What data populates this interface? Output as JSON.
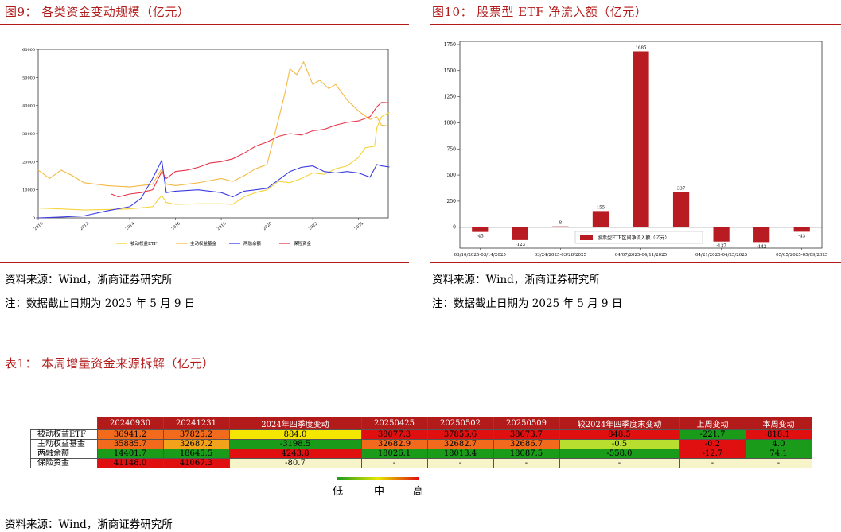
{
  "fig9": {
    "title": "图9： 各类资金变动规模（亿元）",
    "source": "资料来源：Wind，浙商证券研究所",
    "note": "注：数据截止日期为 2025 年 5 月 9 日"
  },
  "fig10": {
    "title": "图10： 股票型 ETF 净流入额（亿元）",
    "source": "资料来源：Wind，浙商证券研究所",
    "note": "注：数据截止日期为 2025 年 5 月 9 日"
  },
  "table1": {
    "title": "表1： 本周增量资金来源拆解（亿元）",
    "source": "资料来源：Wind，浙商证券研究所",
    "headers": [
      "",
      "20240930",
      "20241231",
      "2024年四季度变动",
      "20250425",
      "20250502",
      "20250509",
      "较2024年四季度末变动",
      "上周变动",
      "本周变动"
    ],
    "rows": [
      {
        "label": "被动权益ETF",
        "cells": [
          "36941.2",
          "37825.2",
          "884.0",
          "38077.3",
          "37855.6",
          "38673.7",
          "848.5",
          "-221.7",
          "818.1"
        ],
        "colors": [
          "#f26a1b",
          "#f26a1b",
          "#f5e600",
          "#e01010",
          "#e01010",
          "#e01010",
          "#e01010",
          "#1a9b1a",
          "#e01010"
        ]
      },
      {
        "label": "主动权益基金",
        "cells": [
          "35885.7",
          "32687.2",
          "-3198.5",
          "32682.9",
          "32682.7",
          "32686.7",
          "-0.5",
          "-0.2",
          "4.0"
        ],
        "colors": [
          "#f26a1b",
          "#f2a21b",
          "#1a9b1a",
          "#f26a1b",
          "#f26a1b",
          "#f26a1b",
          "#b8de30",
          "#e01010",
          "#1a9b1a"
        ]
      },
      {
        "label": "两融余额",
        "cells": [
          "14401.7",
          "18645.5",
          "4243.8",
          "18026.1",
          "18013.4",
          "18087.5",
          "-558.0",
          "-12.7",
          "74.1"
        ],
        "colors": [
          "#1a9b1a",
          "#1a9b1a",
          "#e01010",
          "#1a9b1a",
          "#1a9b1a",
          "#1a9b1a",
          "#1a9b1a",
          "#e01010",
          "#1a9b1a"
        ]
      },
      {
        "label": "保险资金",
        "cells": [
          "41148.0",
          "41067.3",
          "-80.7",
          "-",
          "-",
          "-",
          "-",
          "-",
          "-"
        ],
        "colors": [
          "#e01010",
          "#e01010",
          "#f7f4c9",
          "#f7f4c9",
          "#f7f4c9",
          "#f7f4c9",
          "#f7f4c9",
          "#f7f4c9",
          "#f7f4c9"
        ]
      }
    ],
    "legend": {
      "low": "低",
      "mid": "中",
      "high": "高"
    }
  },
  "chart_data": [
    {
      "type": "line",
      "x_ticks": [
        "2010",
        "2012",
        "2014",
        "2016",
        "2018",
        "2020",
        "2022",
        "2024"
      ],
      "y_ticks": [
        "0",
        "10000",
        "20000",
        "30000",
        "40000",
        "50000",
        "60000"
      ],
      "ylim": [
        0,
        60000
      ],
      "xlim": [
        2010,
        2025.3
      ],
      "legend_position": "bottom",
      "series": [
        {
          "name": "被动权益ETF",
          "color": "#f5d33b",
          "x": [
            2010,
            2011,
            2012,
            2013,
            2014,
            2015,
            2015.4,
            2015.6,
            2016,
            2017,
            2018,
            2018.5,
            2019,
            2019.5,
            2020,
            2020.5,
            2021,
            2021.5,
            2022,
            2022.5,
            2023,
            2023.5,
            2024,
            2024.3,
            2024.7,
            2024.8,
            2025,
            2025.35
          ],
          "y": [
            3500,
            3200,
            2800,
            3000,
            3200,
            4000,
            8000,
            5500,
            4800,
            5000,
            5000,
            4800,
            7500,
            9000,
            10000,
            13000,
            12500,
            14000,
            16000,
            15500,
            17500,
            18500,
            21500,
            25000,
            25500,
            32000,
            36000,
            37500
          ]
        },
        {
          "name": "主动权益基金",
          "color": "#f5b944",
          "x": [
            2010,
            2010.5,
            2011,
            2011.5,
            2012,
            2013,
            2014,
            2015,
            2015.4,
            2015.6,
            2016,
            2017,
            2018,
            2018.5,
            2019,
            2019.5,
            2020,
            2020.5,
            2020.8,
            2021,
            2021.3,
            2021.6,
            2022,
            2022.3,
            2022.7,
            2023,
            2023.5,
            2024,
            2024.5,
            2024.8,
            2025,
            2025.35
          ],
          "y": [
            17000,
            14000,
            17000,
            15000,
            12500,
            11500,
            11000,
            12000,
            17500,
            12000,
            11500,
            12500,
            14000,
            13000,
            15000,
            17500,
            19000,
            35000,
            45000,
            53000,
            51000,
            55500,
            47500,
            49000,
            46000,
            47500,
            42000,
            38000,
            35000,
            36000,
            33000,
            32700
          ]
        },
        {
          "name": "两融余额",
          "color": "#3a3ae0",
          "x": [
            2010,
            2011,
            2012,
            2013,
            2014,
            2014.5,
            2015,
            2015.4,
            2015.6,
            2016,
            2017,
            2018,
            2018.5,
            2019,
            2019.5,
            2020,
            2020.5,
            2021,
            2021.5,
            2022,
            2022.5,
            2023,
            2023.5,
            2024,
            2024.5,
            2024.8,
            2025,
            2025.35
          ],
          "y": [
            0,
            300,
            700,
            2500,
            4000,
            7000,
            14000,
            20500,
            9000,
            9500,
            10000,
            9000,
            7500,
            9500,
            10000,
            10500,
            13500,
            16500,
            18000,
            18500,
            16500,
            16000,
            16500,
            16000,
            14500,
            19000,
            18500,
            18100
          ]
        },
        {
          "name": "保险资金",
          "color": "#e8344a",
          "x": [
            2013.2,
            2013.5,
            2014,
            2014.5,
            2015,
            2015.4,
            2015.6,
            2016,
            2016.5,
            2017,
            2017.5,
            2018,
            2018.5,
            2019,
            2019.5,
            2020,
            2020.5,
            2021,
            2021.5,
            2022,
            2022.5,
            2023,
            2023.5,
            2024,
            2024.5,
            2024.8,
            2025,
            2025.3
          ],
          "y": [
            8500,
            7500,
            8500,
            9000,
            10000,
            16500,
            14000,
            16500,
            17000,
            18000,
            19500,
            20000,
            21000,
            23000,
            25500,
            27000,
            29000,
            30000,
            29500,
            31000,
            31500,
            33000,
            34000,
            34500,
            36000,
            39500,
            41100,
            41000
          ]
        }
      ]
    },
    {
      "type": "bar",
      "categories": [
        "03/10/2025-03/14/2025",
        "03/17/2025-03/21/2025",
        "03/24/2025-03/28/2025",
        "03/31/2025-04/04/2025",
        "04/07/2025-04/11/2025",
        "04/14/2025-04/18/2025",
        "04/21/2025-04/25/2025",
        "04/28/2025-05/02/2025",
        "05/05/2025-05/09/2025"
      ],
      "x_tick_labels": [
        "03/10/2025-03/14/2025",
        "03/24/2025-03/28/2025",
        "04/07/2025-04/11/2025",
        "04/21/2025-04/25/2025",
        "05/05/2025-05/09/2025"
      ],
      "values": [
        -45,
        -123,
        8,
        155,
        1685,
        337,
        -137,
        -142,
        -43
      ],
      "y_ticks": [
        "0",
        "250",
        "500",
        "750",
        "1000",
        "1250",
        "1500",
        "1750"
      ],
      "ylim": [
        -200,
        1780
      ],
      "series": [
        {
          "name": "股票型ETF区间净流入额（亿元）",
          "color": "#b81c22"
        }
      ],
      "legend_position": "lower-right"
    }
  ]
}
